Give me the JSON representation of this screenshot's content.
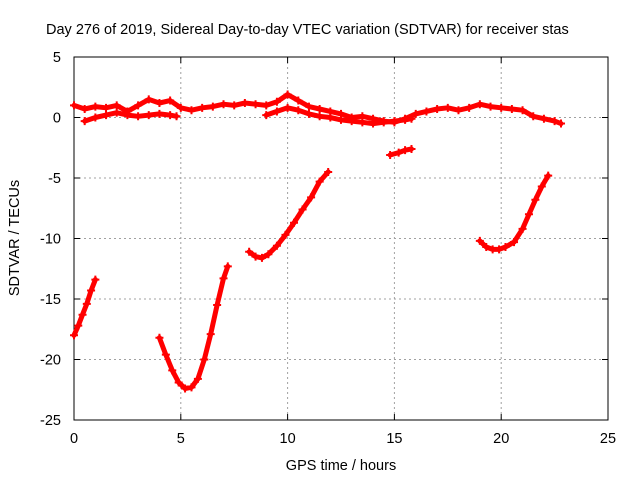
{
  "chart_data": {
    "type": "scatter",
    "title": "Day 276 of 2019, Sidereal Day-to-day VTEC variation (SDTVAR) for receiver stas",
    "xlabel": "GPS time / hours",
    "ylabel": "SDTVAR / TECUs",
    "xlim": [
      0,
      25
    ],
    "ylim": [
      -25,
      5
    ],
    "xticks": [
      0,
      5,
      10,
      15,
      20,
      25
    ],
    "yticks": [
      -25,
      -20,
      -15,
      -10,
      -5,
      0,
      5
    ],
    "grid": true,
    "legend": "none",
    "marker": "plus",
    "color": "#ff0000",
    "series": [
      {
        "name": "track-a",
        "x": [
          0.0,
          0.5,
          1.0,
          1.5,
          2.0,
          2.5,
          3.0,
          3.5,
          4.0,
          4.5,
          5.0,
          5.5,
          6.0,
          6.5,
          7.0,
          7.5,
          8.0,
          8.5,
          9.0,
          9.5,
          10.0,
          10.5,
          11.0,
          11.5,
          12.0,
          12.5,
          13.0,
          13.5,
          14.0,
          14.5,
          15.0,
          15.5,
          16.0,
          16.5,
          17.0,
          17.5,
          18.0,
          18.5,
          19.0,
          19.5,
          20.0,
          20.5,
          21.0,
          21.5,
          22.0,
          22.5,
          22.8
        ],
        "y": [
          1.0,
          0.7,
          0.9,
          0.8,
          1.0,
          0.5,
          1.0,
          1.5,
          1.2,
          1.4,
          0.8,
          0.6,
          0.8,
          0.9,
          1.1,
          1.0,
          1.2,
          1.1,
          1.0,
          1.3,
          1.9,
          1.4,
          0.9,
          0.7,
          0.5,
          0.3,
          0.0,
          0.1,
          -0.1,
          -0.3,
          -0.4,
          -0.1,
          0.3,
          0.5,
          0.7,
          0.8,
          0.6,
          0.8,
          1.1,
          0.9,
          0.8,
          0.7,
          0.6,
          0.1,
          -0.1,
          -0.3,
          -0.5
        ]
      },
      {
        "name": "track-b",
        "x": [
          0.5,
          1.0,
          1.5,
          2.0,
          2.5,
          3.0,
          3.5,
          4.0,
          4.5,
          4.8
        ],
        "y": [
          -0.3,
          0.0,
          0.2,
          0.4,
          0.2,
          0.1,
          0.2,
          0.3,
          0.2,
          0.1
        ]
      },
      {
        "name": "track-c",
        "x": [
          9.0,
          9.5,
          10.0,
          10.5,
          11.0,
          11.5,
          12.0,
          12.5,
          13.0,
          13.5,
          14.0,
          14.5,
          15.0,
          15.5,
          15.8
        ],
        "y": [
          0.2,
          0.5,
          0.8,
          0.6,
          0.3,
          0.1,
          0.0,
          -0.2,
          -0.3,
          -0.4,
          -0.5,
          -0.4,
          -0.3,
          -0.2,
          -0.1
        ]
      },
      {
        "name": "arc-1",
        "x": [
          0.0,
          0.2,
          0.4,
          0.6,
          0.8,
          1.0
        ],
        "y": [
          -18.0,
          -17.2,
          -16.3,
          -15.4,
          -14.3,
          -13.4
        ]
      },
      {
        "name": "arc-2",
        "x": [
          4.0,
          4.3,
          4.6,
          4.9,
          5.2,
          5.5,
          5.8,
          6.1,
          6.4,
          6.7,
          7.0,
          7.2
        ],
        "y": [
          -18.2,
          -19.6,
          -20.9,
          -21.9,
          -22.4,
          -22.3,
          -21.6,
          -20.0,
          -17.9,
          -15.5,
          -13.3,
          -12.3
        ]
      },
      {
        "name": "arc-3",
        "x": [
          8.2,
          8.5,
          8.8,
          9.1,
          9.5,
          9.9,
          10.3,
          10.7,
          11.1,
          11.5,
          11.9
        ],
        "y": [
          -11.1,
          -11.5,
          -11.6,
          -11.3,
          -10.6,
          -9.7,
          -8.7,
          -7.6,
          -6.6,
          -5.3,
          -4.5
        ]
      },
      {
        "name": "arc-4",
        "x": [
          14.8,
          15.2,
          15.5,
          15.8
        ],
        "y": [
          -3.1,
          -2.9,
          -2.7,
          -2.6
        ]
      },
      {
        "name": "arc-5",
        "x": [
          19.0,
          19.3,
          19.6,
          19.9,
          20.2,
          20.6,
          21.0,
          21.3,
          21.6,
          21.9,
          22.2
        ],
        "y": [
          -10.2,
          -10.7,
          -10.9,
          -10.9,
          -10.7,
          -10.3,
          -9.2,
          -8.0,
          -6.8,
          -5.7,
          -4.8
        ]
      }
    ]
  }
}
